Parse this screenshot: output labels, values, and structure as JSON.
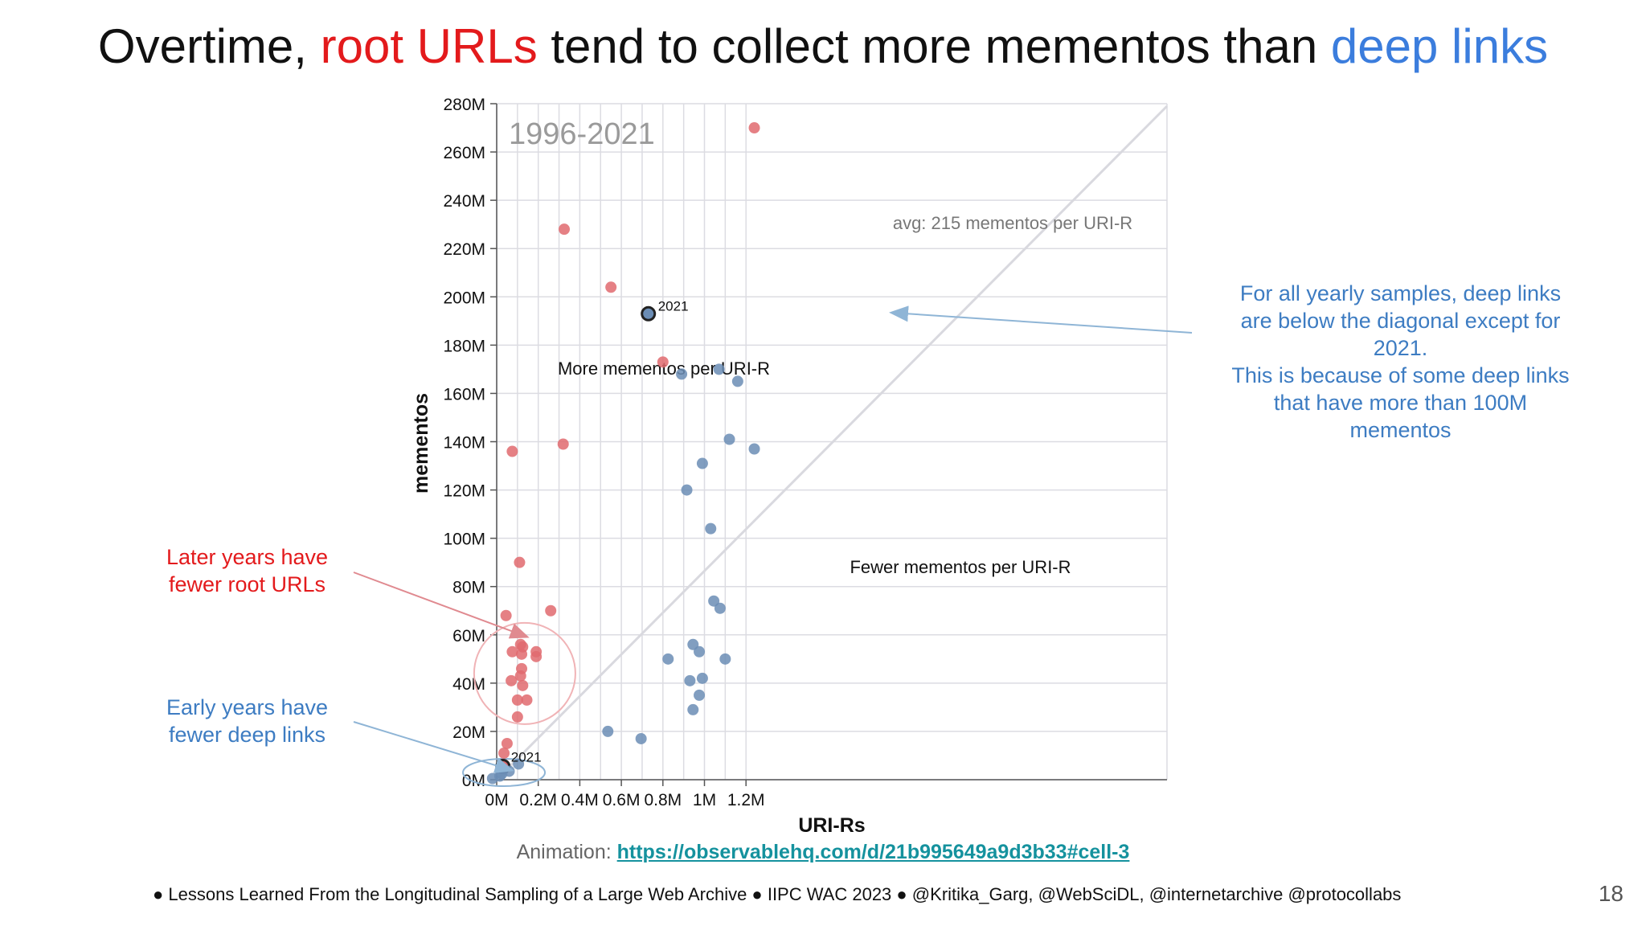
{
  "title": {
    "part1": "Overtime,",
    "root": "root URLs",
    "part2": "tend to collect more mementos than",
    "deep": "deep links"
  },
  "notes": {
    "root_line1": "Later years have",
    "root_line2": "fewer root URLs",
    "deep_line1": "Early years have",
    "deep_line2": "fewer deep links",
    "right": [
      "For all yearly samples, deep links",
      "are below the diagonal except for",
      "2021.",
      "This is because of some deep links",
      "that have more than 100M",
      "mementos"
    ]
  },
  "animation": {
    "label": "Animation:",
    "link": "https://observablehq.com/d/21b995649a9d3b33#cell-3"
  },
  "footer": "● Lessons Learned From the Longitudinal Sampling of a Large Web Archive   ● IIPC WAC 2023   ● @Kritika_Garg, @WebSciDL, @internetarchive @protocollabs",
  "slide_number": "18",
  "colors": {
    "root": "#e06a6e",
    "deep": "#6b8db5",
    "title_red": "#e31a1c",
    "title_blue": "#3b7ddd",
    "diagonal": "#d8d8de"
  },
  "chart_data": {
    "type": "scatter",
    "title": "1996-2021",
    "xlabel": "URI-Rs",
    "ylabel": "mementos",
    "xlim": [
      0,
      1.26
    ],
    "ylim": [
      0,
      280
    ],
    "x_unit": "M",
    "y_unit": "M",
    "x_ticks": [
      "0M",
      "0.2M",
      "0.4M",
      "0.6M",
      "0.8M",
      "1M",
      "1.2M"
    ],
    "y_ticks": [
      "0M",
      "20M",
      "40M",
      "60M",
      "80M",
      "100M",
      "120M",
      "140M",
      "160M",
      "180M",
      "200M",
      "220M",
      "240M",
      "260M",
      "280M"
    ],
    "grid": true,
    "diagonal_label": "avg: 215 mementos per URI-R",
    "region_above": "More mementos per URI-R",
    "region_below": "Fewer mementos per URI-R",
    "highlight_label": "2021",
    "series": [
      {
        "name": "root URLs",
        "color": "#e06a6e",
        "points": [
          [
            1.24,
            270
          ],
          [
            0.325,
            228
          ],
          [
            0.55,
            204
          ],
          [
            0.8,
            173
          ],
          [
            0.075,
            136
          ],
          [
            0.32,
            139
          ],
          [
            0.11,
            90
          ],
          [
            0.26,
            70
          ],
          [
            0.045,
            68
          ],
          [
            0.115,
            56
          ],
          [
            0.125,
            55
          ],
          [
            0.075,
            53
          ],
          [
            0.12,
            52
          ],
          [
            0.19,
            53
          ],
          [
            0.19,
            51
          ],
          [
            0.12,
            46
          ],
          [
            0.115,
            43
          ],
          [
            0.07,
            41
          ],
          [
            0.125,
            39
          ],
          [
            0.1,
            33
          ],
          [
            0.145,
            33
          ],
          [
            0.1,
            26
          ],
          [
            0.05,
            15
          ],
          [
            0.035,
            11
          ],
          [
            0.03,
            5.5
          ]
        ],
        "highlight": [
          0.03,
          5.5
        ]
      },
      {
        "name": "deep links",
        "color": "#6b8db5",
        "points": [
          [
            0.73,
            193
          ],
          [
            0.89,
            168
          ],
          [
            1.07,
            170
          ],
          [
            1.16,
            165
          ],
          [
            1.12,
            141
          ],
          [
            1.24,
            137
          ],
          [
            0.99,
            131
          ],
          [
            0.915,
            120
          ],
          [
            1.03,
            104
          ],
          [
            1.045,
            74
          ],
          [
            1.075,
            71
          ],
          [
            0.825,
            50
          ],
          [
            1.1,
            50
          ],
          [
            0.945,
            56
          ],
          [
            0.975,
            53
          ],
          [
            0.93,
            41
          ],
          [
            0.99,
            42
          ],
          [
            0.975,
            35
          ],
          [
            0.945,
            29
          ],
          [
            0.535,
            20
          ],
          [
            0.695,
            17
          ],
          [
            0.105,
            6.5
          ],
          [
            0.06,
            3.5
          ],
          [
            0.025,
            2.5
          ],
          [
            0.015,
            1.5
          ],
          [
            -0.02,
            0.5
          ]
        ],
        "highlight": [
          0.73,
          193
        ]
      }
    ]
  }
}
